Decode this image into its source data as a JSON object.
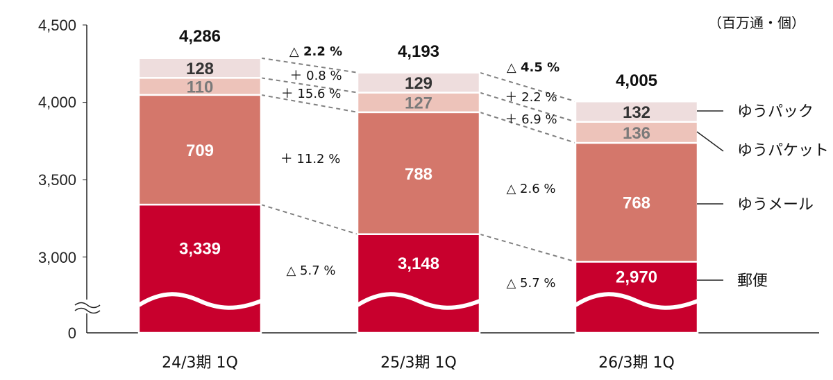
{
  "chart_data": {
    "type": "bar",
    "stacked": true,
    "unit": "（百万通・個）",
    "categories": [
      "24/3期 1Q",
      "25/3期 1Q",
      "26/3期 1Q"
    ],
    "totals": [
      "4,286",
      "4,193",
      "4,005"
    ],
    "series": [
      {
        "name": "郵便",
        "values": [
          3339,
          3148,
          2970
        ],
        "labels": [
          "3,339",
          "3,148",
          "2,970"
        ],
        "color": "#C8002D",
        "text_color": "#ffffff"
      },
      {
        "name": "ゆうメール",
        "values": [
          709,
          788,
          768
        ],
        "labels": [
          "709",
          "788",
          "768"
        ],
        "color": "#D4776B",
        "text_color": "#ffffff"
      },
      {
        "name": "ゆうパケット",
        "values": [
          110,
          127,
          136
        ],
        "labels": [
          "110",
          "127",
          "136"
        ],
        "color": "#EDC3BA",
        "text_color": "#7a7a7a"
      },
      {
        "name": "ゆうパック",
        "values": [
          128,
          129,
          132
        ],
        "labels": [
          "128",
          "129",
          "132"
        ],
        "color": "#EEDDDD",
        "text_color": "#333333"
      }
    ],
    "yticks": [
      "0",
      "3,000",
      "3,500",
      "4,000",
      "4,500"
    ],
    "ylim": [
      2750,
      4500
    ],
    "axis_break": true,
    "changes": [
      {
        "total": "△ 2.2 %",
        "pack": "＋ 0.8 %",
        "packet": "＋ 15.6 %",
        "mail": "＋ 11.2 %",
        "postal": "△ 5.7 %"
      },
      {
        "total": "△ 4.5 %",
        "pack": "＋ 2.2 %",
        "packet": "＋ 6.9 %",
        "mail": "△ 2.6 %",
        "postal": "△ 5.7 %"
      }
    ]
  }
}
